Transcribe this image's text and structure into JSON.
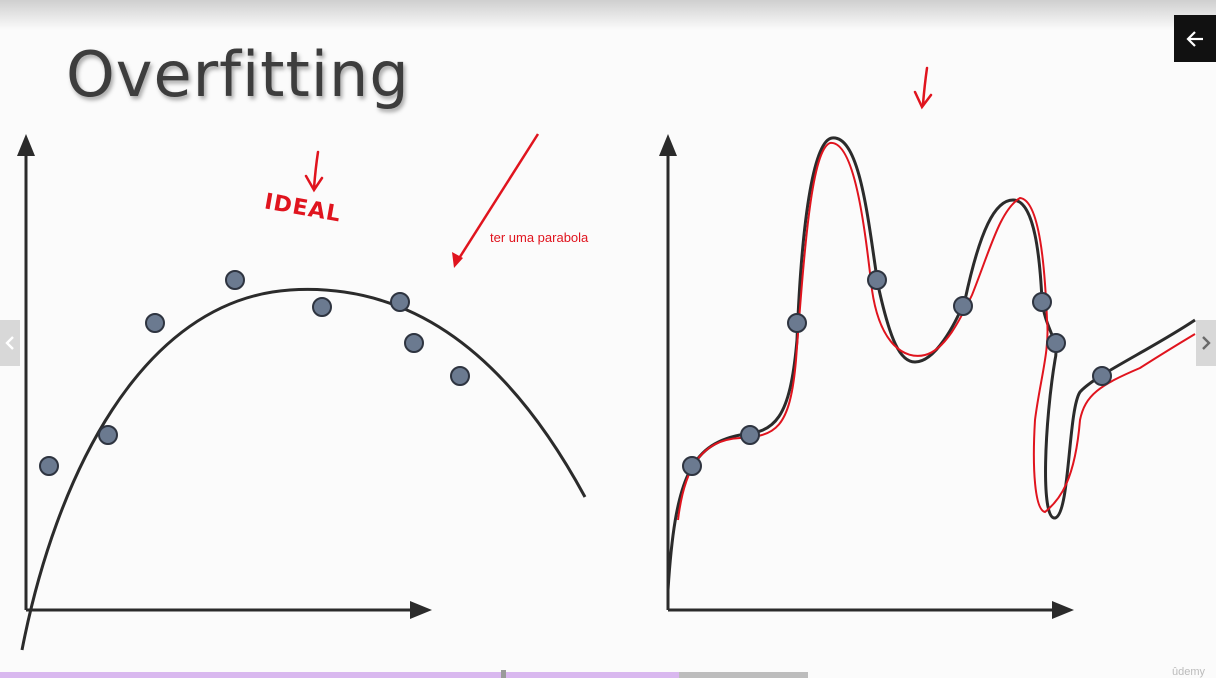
{
  "slide": {
    "title": "Overfitting",
    "note": "ter uma parabola",
    "handwritten_label": "IDEAL"
  },
  "player": {
    "back_icon": "arrow-left-icon",
    "prev_icon": "chevron-left-icon",
    "next_icon": "chevron-right-icon",
    "progress_fraction": 0.84,
    "progress_marker_fraction": 0.62,
    "watermark": "ûdemy"
  },
  "colors": {
    "ink": "#2b2b2b",
    "point_fill": "#6b7a90",
    "annotation": "#e0141e",
    "progress_fill": "#d9b8ef"
  }
}
